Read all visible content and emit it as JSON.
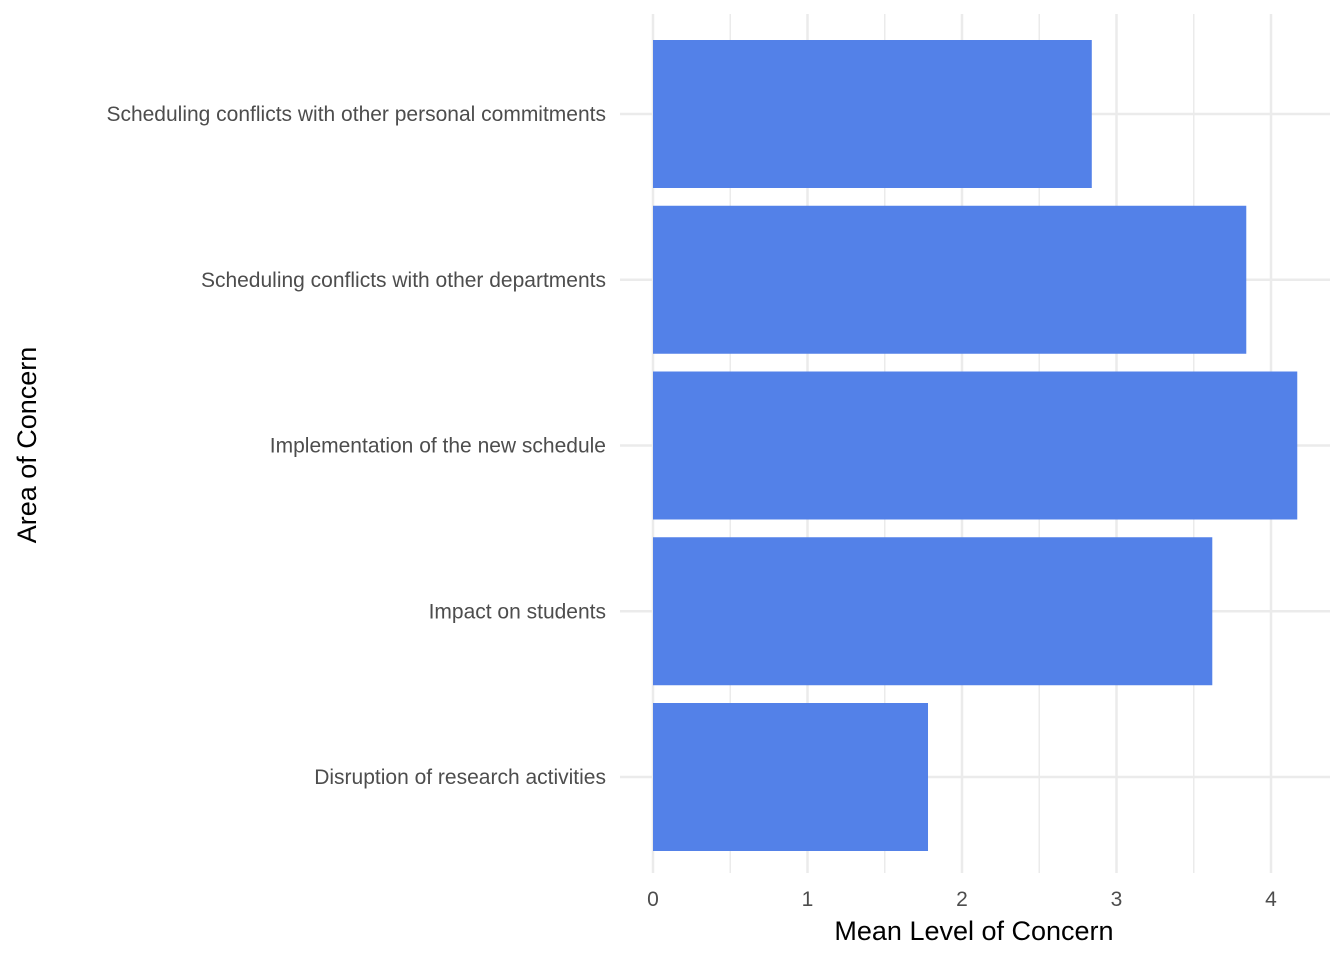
{
  "chart_data": {
    "type": "bar",
    "orientation": "horizontal",
    "title": "",
    "xlabel": "Mean Level of Concern",
    "ylabel": "Area of Concern",
    "categories": [
      "Disruption of research activities",
      "Impact on students",
      "Implementation of the new schedule",
      "Scheduling conflicts with other departments",
      "Scheduling conflicts with other personal commitments"
    ],
    "values": [
      1.78,
      3.62,
      4.17,
      3.84,
      2.84
    ],
    "xlim": [
      0,
      4.3
    ],
    "xticks": [
      0,
      1,
      2,
      3,
      4
    ],
    "grid": true,
    "legend": "none",
    "bar_color": "#5381E8",
    "grid_color": "#EBEBEB"
  }
}
